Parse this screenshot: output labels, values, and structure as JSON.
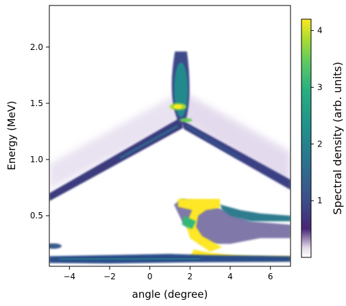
{
  "chart_data": {
    "type": "heatmap",
    "xlabel": "angle (degree)",
    "ylabel": "Energy (MeV)",
    "xlim": [
      -5,
      7
    ],
    "ylim": [
      0.05,
      2.37
    ],
    "xticks": [
      -4,
      -2,
      0,
      2,
      4,
      6
    ],
    "yticks": [
      0.5,
      1.0,
      1.5,
      2.0
    ],
    "xtick_labels": [
      "−4",
      "−2",
      "0",
      "2",
      "4",
      "6"
    ],
    "ytick_labels": [
      "0.5",
      "1.0",
      "1.5",
      "2.0"
    ],
    "colorbar": {
      "label": "Spectral density (arb. units)",
      "range": [
        0,
        4.2
      ],
      "ticks": [
        1,
        2,
        3,
        4
      ],
      "tick_labels": [
        "1",
        "2",
        "3",
        "4"
      ],
      "colormap": "viridis (low end fading to white)"
    },
    "grid": false,
    "features": [
      {
        "name": "left X arm",
        "from": [
          -5.0,
          0.65
        ],
        "to": [
          1.6,
          1.33
        ]
      },
      {
        "name": "right X arm",
        "from": [
          1.6,
          1.33
        ],
        "to": [
          7.0,
          0.75
        ]
      },
      {
        "name": "upper left diffuse arm",
        "from": [
          -5.0,
          0.78
        ],
        "to": [
          1.5,
          1.45
        ]
      },
      {
        "name": "upper right diffuse arm",
        "from": [
          1.7,
          1.45
        ],
        "to": [
          7.0,
          0.85
        ]
      },
      {
        "name": "central bright blob",
        "x_range": [
          0.9,
          2.1
        ],
        "y_range": [
          1.3,
          1.96
        ],
        "peak": [
          1.4,
          1.47
        ]
      },
      {
        "name": "low-energy bright branch",
        "x_range": [
          1.4,
          7.0
        ],
        "y_range": [
          0.1,
          0.65
        ]
      },
      {
        "name": "bottom band",
        "x_range": [
          -5.0,
          7.0
        ],
        "y_range": [
          0.07,
          0.15
        ]
      }
    ]
  }
}
